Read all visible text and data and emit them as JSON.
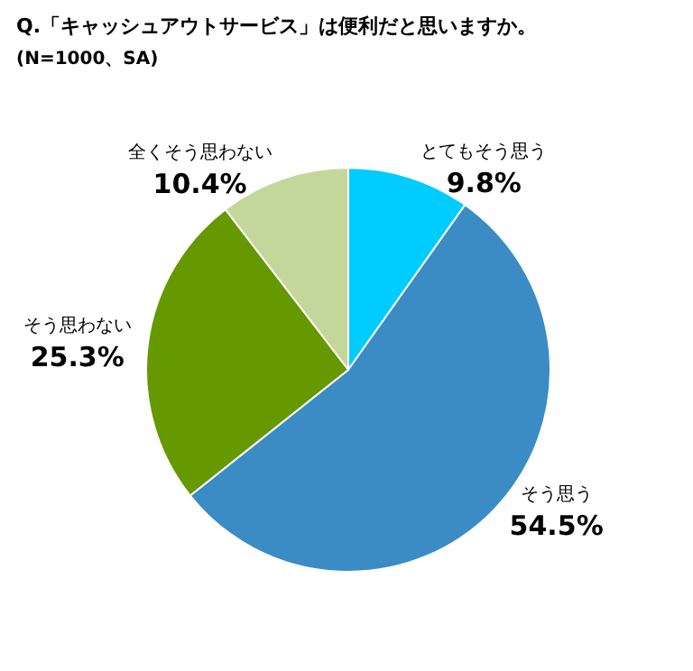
{
  "chart_data": {
    "type": "pie",
    "title": "Q.「キャッシュアウトサービス」は便利だと思いますか。",
    "subtitle": "(N=1000、SA)",
    "categories": [
      "とてもそう思う",
      "そう思う",
      "そう思わない",
      "全くそう思わない"
    ],
    "values": [
      9.8,
      54.5,
      25.3,
      10.4
    ],
    "colors": [
      "#00ccff",
      "#3b8cc4",
      "#669900",
      "#c4d79b"
    ],
    "value_labels": [
      "9.8%",
      "54.5%",
      "25.3%",
      "10.4%"
    ],
    "legend": false
  }
}
